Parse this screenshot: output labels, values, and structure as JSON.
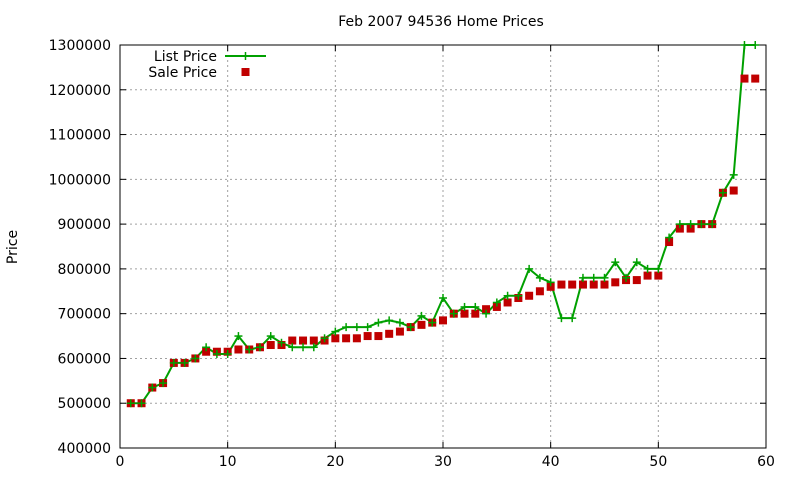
{
  "chart_data": {
    "type": "line",
    "title": "Feb 2007 94536 Home Prices",
    "xlabel": "",
    "ylabel": "Price",
    "xlim": [
      0,
      60
    ],
    "ylim": [
      400000,
      1300000
    ],
    "xticks": [
      0,
      10,
      20,
      30,
      40,
      50,
      60
    ],
    "yticks": [
      400000,
      500000,
      600000,
      700000,
      800000,
      900000,
      1000000,
      1100000,
      1200000,
      1300000
    ],
    "grid": true,
    "legend_position": "top-left",
    "series": [
      {
        "name": "List Price",
        "style": "line-with-plus-markers",
        "color": "#00a000",
        "x": [
          1,
          2,
          3,
          4,
          5,
          6,
          7,
          8,
          9,
          10,
          11,
          12,
          13,
          14,
          15,
          16,
          17,
          18,
          19,
          20,
          21,
          22,
          23,
          24,
          25,
          26,
          27,
          28,
          29,
          30,
          31,
          32,
          33,
          34,
          35,
          36,
          37,
          38,
          39,
          40,
          41,
          42,
          43,
          44,
          45,
          46,
          47,
          48,
          49,
          50,
          51,
          52,
          53,
          54,
          55,
          56,
          57,
          58,
          59
        ],
        "y": [
          500000,
          500000,
          535000,
          545000,
          590000,
          590000,
          600000,
          625000,
          610000,
          610000,
          650000,
          620000,
          625000,
          650000,
          635000,
          625000,
          625000,
          625000,
          645000,
          660000,
          670000,
          670000,
          670000,
          680000,
          685000,
          680000,
          670000,
          695000,
          680000,
          735000,
          700000,
          715000,
          715000,
          700000,
          725000,
          740000,
          740000,
          800000,
          780000,
          770000,
          690000,
          690000,
          780000,
          780000,
          780000,
          815000,
          780000,
          815000,
          800000,
          800000,
          870000,
          900000,
          900000,
          900000,
          900000,
          970000,
          1010000,
          1300000,
          1300000
        ]
      },
      {
        "name": "Sale Price",
        "style": "square-markers",
        "color": "#c00000",
        "x": [
          1,
          2,
          3,
          4,
          5,
          6,
          7,
          8,
          9,
          10,
          11,
          12,
          13,
          14,
          15,
          16,
          17,
          18,
          19,
          20,
          21,
          22,
          23,
          24,
          25,
          26,
          27,
          28,
          29,
          30,
          31,
          32,
          33,
          34,
          35,
          36,
          37,
          38,
          39,
          40,
          41,
          42,
          43,
          44,
          45,
          46,
          47,
          48,
          49,
          50,
          51,
          52,
          53,
          54,
          55,
          56,
          57,
          58,
          59
        ],
        "y": [
          500000,
          500000,
          535000,
          545000,
          590000,
          590000,
          600000,
          615000,
          615000,
          615000,
          620000,
          620000,
          625000,
          630000,
          630000,
          640000,
          640000,
          640000,
          640000,
          645000,
          645000,
          645000,
          650000,
          650000,
          655000,
          660000,
          670000,
          675000,
          680000,
          685000,
          700000,
          700000,
          700000,
          710000,
          715000,
          725000,
          735000,
          740000,
          750000,
          760000,
          765000,
          765000,
          765000,
          765000,
          765000,
          770000,
          775000,
          775000,
          785000,
          785000,
          860000,
          890000,
          890000,
          900000,
          900000,
          970000,
          975000,
          1225000,
          1225000
        ]
      }
    ]
  }
}
